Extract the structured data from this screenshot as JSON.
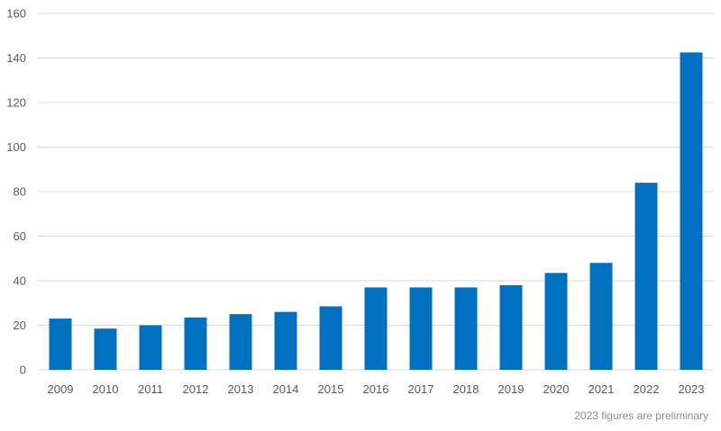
{
  "chart_data": {
    "type": "bar",
    "categories": [
      "2009",
      "2010",
      "2011",
      "2012",
      "2013",
      "2014",
      "2015",
      "2016",
      "2017",
      "2018",
      "2019",
      "2020",
      "2021",
      "2022",
      "2023"
    ],
    "values": [
      23,
      18.5,
      20,
      23.5,
      25,
      26,
      28.5,
      37,
      37,
      37,
      38,
      43.5,
      48,
      84,
      142.5
    ],
    "ylim": [
      0,
      160
    ],
    "yticks": [
      0,
      20,
      40,
      60,
      80,
      100,
      120,
      140,
      160
    ],
    "grid": true,
    "bar_color": "#0070c0",
    "grid_color": "#d9d9d9",
    "footnote": "2023 figures are preliminary"
  }
}
